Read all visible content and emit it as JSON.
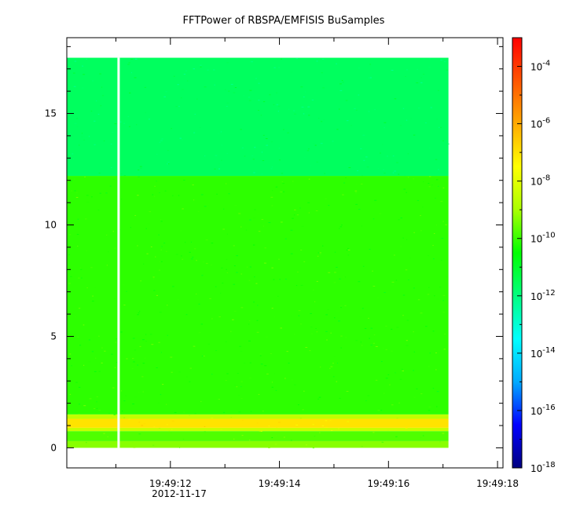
{
  "chart_data": {
    "type": "heatmap",
    "title": "FFTPower of RBSPA/EMFISIS  BuSamples",
    "xlabel": "",
    "ylabel": "",
    "x_tick_labels": [
      "19:49:12",
      "19:49:14",
      "19:49:16",
      "19:49:18"
    ],
    "x_tick_sublabel": "2012-11-17",
    "x_range_seconds": [
      10.1,
      18.1
    ],
    "x_major_ticks": [
      12,
      14,
      16,
      18
    ],
    "x_minor_ticks": [
      11,
      13,
      15,
      17
    ],
    "y_ticks": [
      0,
      5,
      10,
      15
    ],
    "ylim": [
      -0.9,
      18.4
    ],
    "data_extent": {
      "x": [
        10.1,
        17.1
      ],
      "y": [
        0,
        17.5
      ]
    },
    "gap_x": 11.05,
    "colorbar": {
      "scale": "log",
      "range": [
        1e-18,
        0.001
      ],
      "tick_labels": [
        {
          "base": "10",
          "exp": "-4",
          "value": -4
        },
        {
          "base": "10",
          "exp": "-6",
          "value": -6
        },
        {
          "base": "10",
          "exp": "-8",
          "value": -8
        },
        {
          "base": "10",
          "exp": "-10",
          "value": -10
        },
        {
          "base": "10",
          "exp": "-12",
          "value": -12
        },
        {
          "base": "10",
          "exp": "-14",
          "value": -14
        },
        {
          "base": "10",
          "exp": "-16",
          "value": -16
        },
        {
          "base": "10",
          "exp": "-18",
          "value": -18
        }
      ],
      "colormap": [
        "#000080",
        "#0000ff",
        "#00aaff",
        "#00ffff",
        "#00ff80",
        "#00ff00",
        "#aaff00",
        "#ffff00",
        "#ffaa00",
        "#ff5500",
        "#ff0000"
      ]
    },
    "bands": [
      {
        "y_from": 0,
        "y_to": 0.3,
        "log_power": -9.3
      },
      {
        "y_from": 0.3,
        "y_to": 0.75,
        "log_power": -9.8
      },
      {
        "y_from": 0.75,
        "y_to": 0.9,
        "log_power": -8.5
      },
      {
        "y_from": 0.9,
        "y_to": 1.3,
        "log_power": -7.0
      },
      {
        "y_from": 1.3,
        "y_to": 1.5,
        "log_power": -8.6
      },
      {
        "y_from": 1.5,
        "y_to": 12.2,
        "log_power": -10.1
      },
      {
        "y_from": 12.2,
        "y_to": 17.5,
        "log_power": -11.6
      }
    ]
  }
}
